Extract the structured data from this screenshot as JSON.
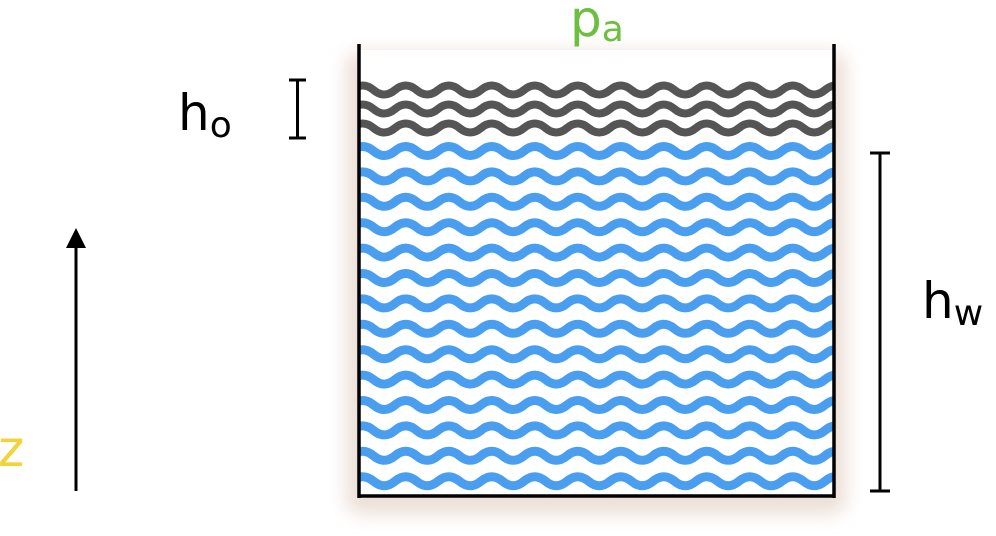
{
  "labels": {
    "pressure_main": "p",
    "pressure_sub": "a",
    "oil_height_main": "h",
    "oil_height_sub": "o",
    "water_height_main": "h",
    "water_height_sub": "w",
    "z_axis": "z"
  },
  "colors": {
    "pressure_label": "#6cbf3f",
    "z_label": "#f2d33a",
    "water_wave": "#4a9ef0",
    "oil_wave": "#555555",
    "container": "#000000",
    "container_shadow": "#eadcd2"
  },
  "layers": {
    "oil_wave_count": 3,
    "water_wave_count": 14
  }
}
